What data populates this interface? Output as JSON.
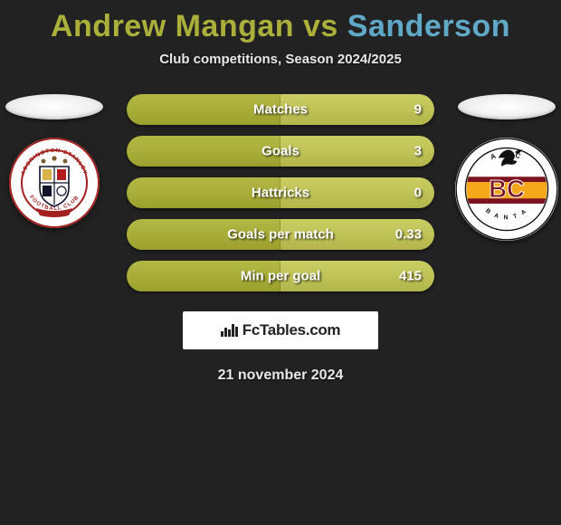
{
  "title": {
    "player1": "Andrew Mangan",
    "vs": " vs ",
    "player2": "Sanderson",
    "player1_color": "#aab03a",
    "player2_color": "#60a8c8"
  },
  "subtitle": "Club competitions, Season 2024/2025",
  "bars": {
    "left_color": "#a9ae3a",
    "right_color": "#c0c458",
    "items": [
      {
        "label": "Matches",
        "value": "9"
      },
      {
        "label": "Goals",
        "value": "3"
      },
      {
        "label": "Hattricks",
        "value": "0"
      },
      {
        "label": "Goals per match",
        "value": "0.33"
      },
      {
        "label": "Min per goal",
        "value": "415"
      }
    ]
  },
  "left_club": {
    "name": "Accrington Stanley Football Club",
    "badge_bg": "#ffffff",
    "ring_color": "#a3201f",
    "size": 100
  },
  "right_club": {
    "name": "Bradford City AFC",
    "badge_bg": "#ffffff",
    "primary": "#f6a81c",
    "stripe": "#7a1222",
    "size": 114
  },
  "watermark": "FcTables.com",
  "date": "21 november 2024",
  "background_color": "#222222"
}
